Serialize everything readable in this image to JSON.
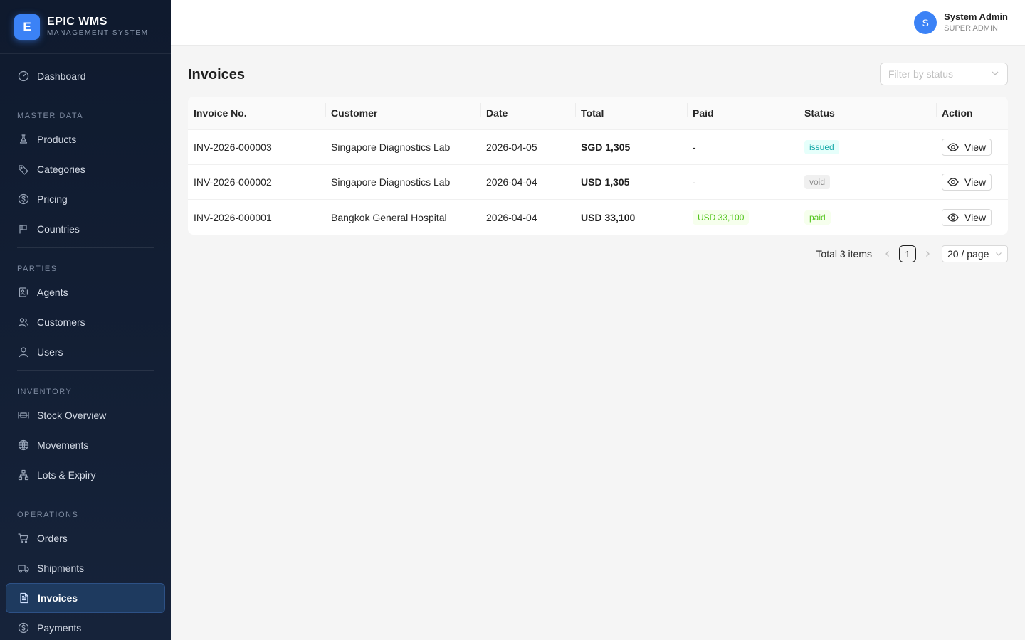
{
  "brand": {
    "logo_letter": "E",
    "name": "EPIC WMS",
    "subtitle": "MANAGEMENT SYSTEM"
  },
  "sidebar": {
    "dashboard": {
      "label": "Dashboard",
      "icon": "dashboard-icon"
    },
    "sections": [
      {
        "title": "MASTER DATA",
        "items": [
          {
            "label": "Products",
            "icon": "flask-icon"
          },
          {
            "label": "Categories",
            "icon": "tag-icon"
          },
          {
            "label": "Pricing",
            "icon": "dollar-icon"
          },
          {
            "label": "Countries",
            "icon": "flag-icon"
          }
        ]
      },
      {
        "title": "PARTIES",
        "items": [
          {
            "label": "Agents",
            "icon": "contact-icon"
          },
          {
            "label": "Customers",
            "icon": "users-icon"
          },
          {
            "label": "Users",
            "icon": "user-icon"
          }
        ]
      },
      {
        "title": "INVENTORY",
        "items": [
          {
            "label": "Stock Overview",
            "icon": "stock-icon"
          },
          {
            "label": "Movements",
            "icon": "globe-icon"
          },
          {
            "label": "Lots & Expiry",
            "icon": "cluster-icon"
          }
        ]
      },
      {
        "title": "OPERATIONS",
        "items": [
          {
            "label": "Orders",
            "icon": "cart-icon"
          },
          {
            "label": "Shipments",
            "icon": "truck-icon"
          },
          {
            "label": "Invoices",
            "icon": "file-icon",
            "active": true
          },
          {
            "label": "Payments",
            "icon": "dollar-icon"
          }
        ]
      }
    ]
  },
  "header": {
    "avatar_letter": "S",
    "user_name": "System Admin",
    "user_role": "SUPER ADMIN"
  },
  "main": {
    "title": "Invoices",
    "filter_placeholder": "Filter by status",
    "columns": [
      "Invoice No.",
      "Customer",
      "Date",
      "Total",
      "Paid",
      "Status",
      "Action"
    ],
    "rows": [
      {
        "invoice_no": "INV-2026-000003",
        "customer": "Singapore Diagnostics Lab",
        "date": "2026-04-05",
        "total": "SGD 1,305",
        "paid": "-",
        "paid_tag": false,
        "status": "issued",
        "action": "View"
      },
      {
        "invoice_no": "INV-2026-000002",
        "customer": "Singapore Diagnostics Lab",
        "date": "2026-04-04",
        "total": "USD 1,305",
        "paid": "-",
        "paid_tag": false,
        "status": "void",
        "action": "View"
      },
      {
        "invoice_no": "INV-2026-000001",
        "customer": "Bangkok General Hospital",
        "date": "2026-04-04",
        "total": "USD 33,100",
        "paid": "USD 33,100",
        "paid_tag": true,
        "status": "paid",
        "action": "View"
      }
    ],
    "pagination": {
      "total_text": "Total 3 items",
      "current_page": "1",
      "page_size": "20 / page"
    }
  },
  "colors": {
    "sidebar_bg": "#0f1a2e",
    "accent": "#3b82f6",
    "active_item_bg": "#1e3a5f",
    "status_issued": "#13a8a8",
    "status_void": "#8c8c8c",
    "status_paid": "#52c41a"
  }
}
